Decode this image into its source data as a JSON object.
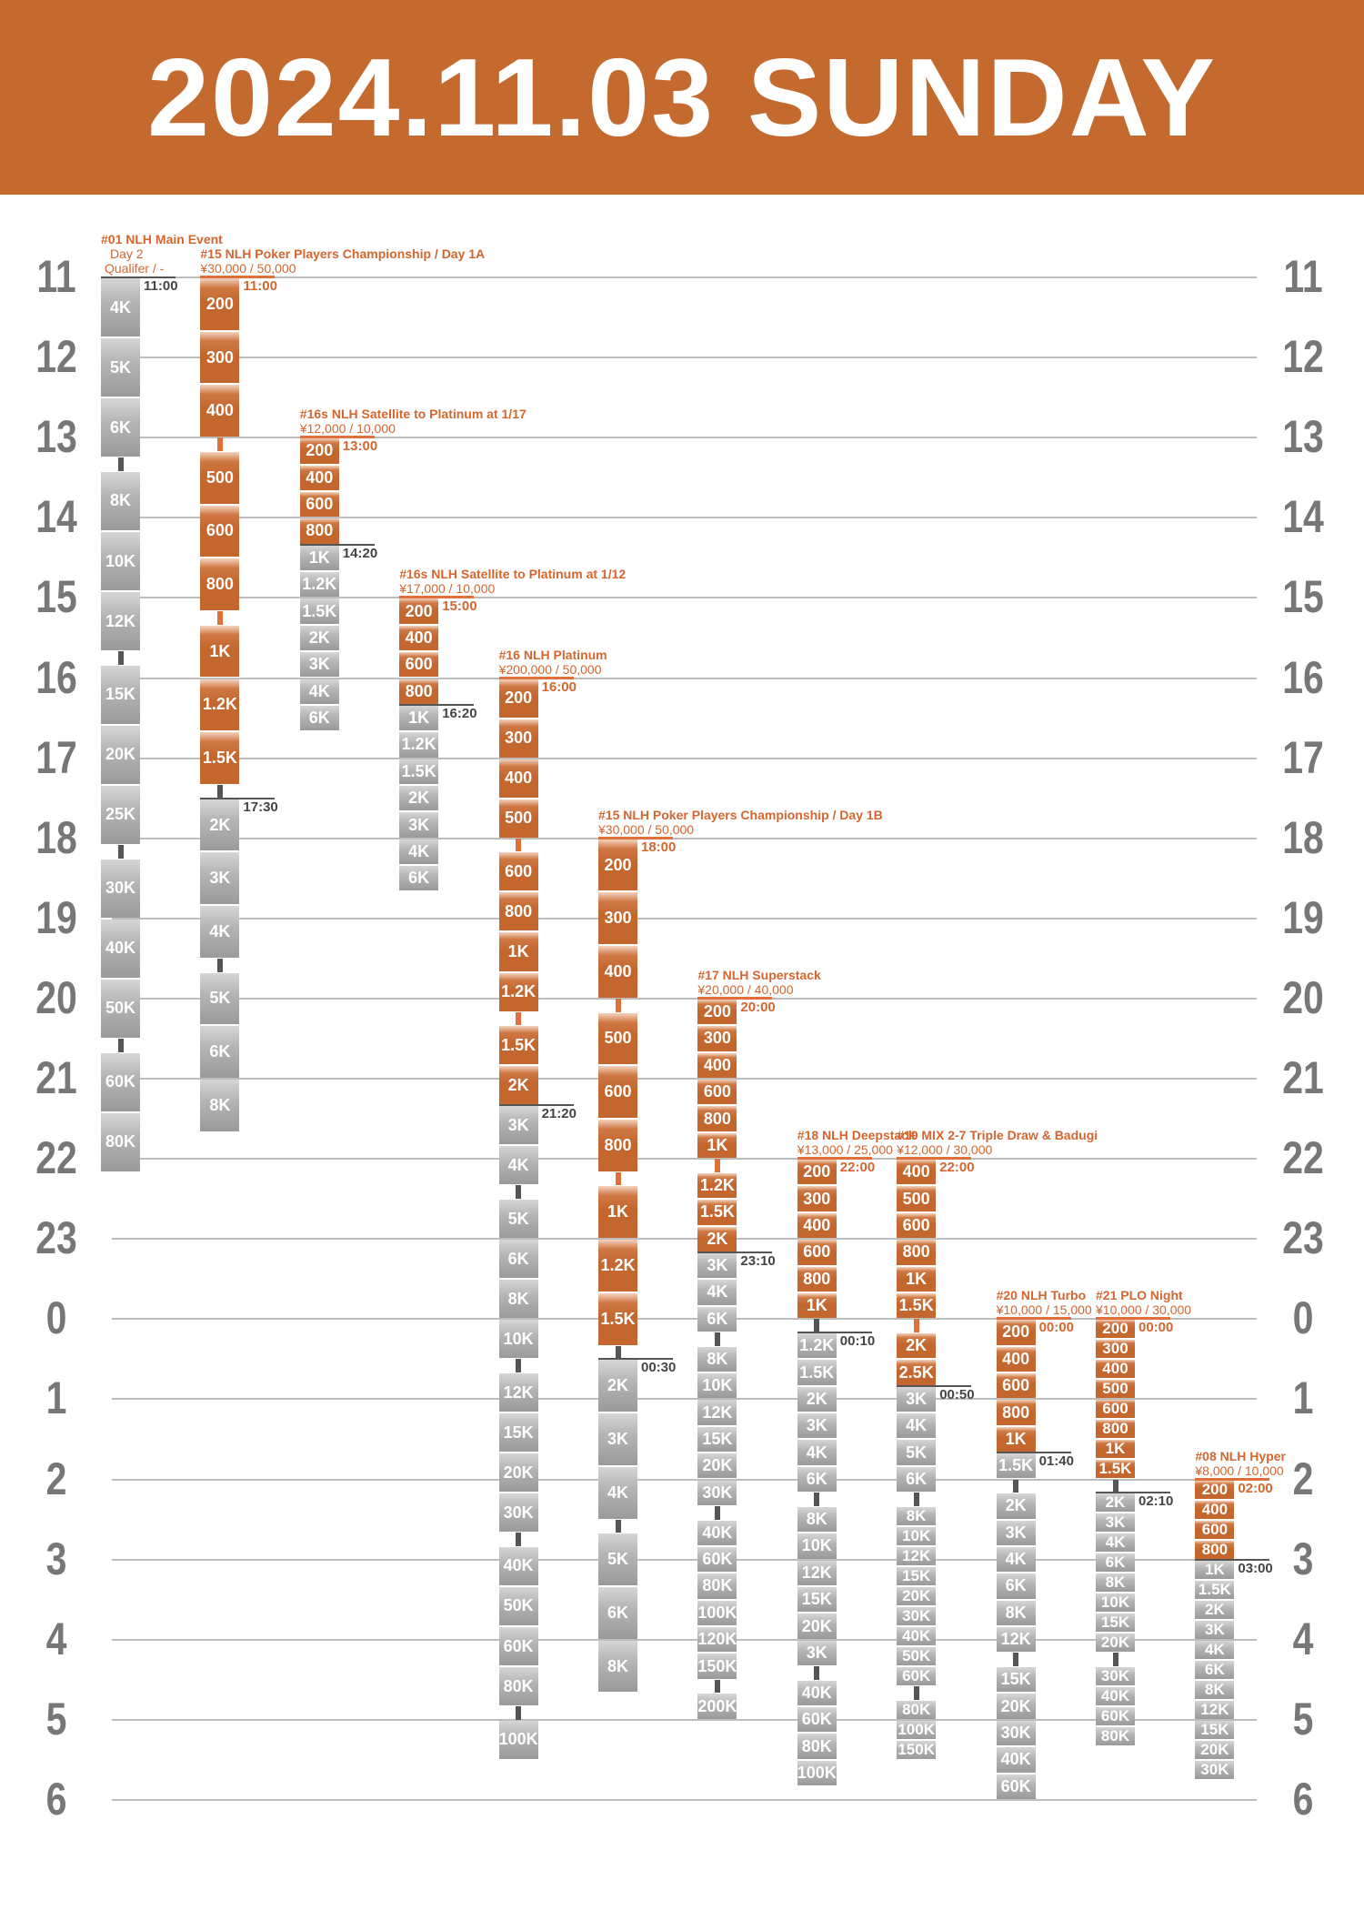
{
  "header": {
    "title": "2024.11.03 SUNDAY"
  },
  "colors": {
    "brand": "#c56a2f",
    "open_level": "#c4672f",
    "closed_level": "#a0a0a0",
    "reg_close_line": "#555555",
    "gridline": "#bdbdbd"
  },
  "hours": [
    "11",
    "12",
    "13",
    "14",
    "15",
    "16",
    "17",
    "18",
    "19",
    "20",
    "21",
    "22",
    "23",
    "0",
    "1",
    "2",
    "3",
    "4",
    "5",
    "6"
  ],
  "events": [
    {
      "title": "#01 NLH Main Event",
      "lines": [
        "Day 2",
        "Qualifer / -"
      ],
      "price": "",
      "start": "11:00",
      "reg_close": "11:00",
      "levels": [
        {
          "b": "4K",
          "m": 45
        },
        {
          "b": "5K",
          "m": 45
        },
        {
          "b": "6K",
          "m": 45
        },
        {
          "break": 10
        },
        {
          "b": "8K",
          "m": 45
        },
        {
          "b": "10K",
          "m": 45
        },
        {
          "b": "12K",
          "m": 45
        },
        {
          "break": 10
        },
        {
          "b": "15K",
          "m": 45
        },
        {
          "b": "20K",
          "m": 45
        },
        {
          "b": "25K",
          "m": 45
        },
        {
          "break": 10
        },
        {
          "b": "30K",
          "m": 45
        },
        {
          "b": "40K",
          "m": 45
        },
        {
          "b": "50K",
          "m": 45
        },
        {
          "break": 10
        },
        {
          "b": "60K",
          "m": 45
        },
        {
          "b": "80K",
          "m": 45
        }
      ]
    },
    {
      "title": "#15 NLH Poker Players Championship / Day 1A",
      "lines": [],
      "price": "¥30,000  / 50,000",
      "start": "11:00",
      "reg_close": "17:30",
      "levels": [
        {
          "b": "200",
          "m": 40
        },
        {
          "b": "300",
          "m": 40
        },
        {
          "b": "400",
          "m": 40
        },
        {
          "break": 10
        },
        {
          "b": "500",
          "m": 40
        },
        {
          "b": "600",
          "m": 40
        },
        {
          "b": "800",
          "m": 40
        },
        {
          "break": 10
        },
        {
          "b": "1K",
          "m": 40
        },
        {
          "b": "1.2K",
          "m": 40
        },
        {
          "b": "1.5K",
          "m": 40
        },
        {
          "break": 10
        },
        {
          "b": "2K",
          "m": 40
        },
        {
          "b": "3K",
          "m": 40
        },
        {
          "b": "4K",
          "m": 40
        },
        {
          "break": 10
        },
        {
          "b": "5K",
          "m": 40
        },
        {
          "b": "6K",
          "m": 40
        },
        {
          "b": "8K",
          "m": 40
        }
      ]
    },
    {
      "title": "#16s NLH Satellite to Platinum at 1/17",
      "lines": [],
      "price": "¥12,000 / 10,000",
      "start": "13:00",
      "reg_close": "14:20",
      "levels": [
        {
          "b": "200",
          "m": 20
        },
        {
          "b": "400",
          "m": 20
        },
        {
          "b": "600",
          "m": 20
        },
        {
          "b": "800",
          "m": 20
        },
        {
          "b": "1K",
          "m": 20
        },
        {
          "b": "1.2K",
          "m": 20
        },
        {
          "b": "1.5K",
          "m": 20
        },
        {
          "b": "2K",
          "m": 20
        },
        {
          "b": "3K",
          "m": 20
        },
        {
          "b": "4K",
          "m": 20
        },
        {
          "b": "6K",
          "m": 20
        }
      ]
    },
    {
      "title": "#16s NLH Satellite to Platinum at 1/12",
      "lines": [],
      "price": "¥17,000 / 10,000",
      "start": "15:00",
      "reg_close": "16:20",
      "levels": [
        {
          "b": "200",
          "m": 20
        },
        {
          "b": "400",
          "m": 20
        },
        {
          "b": "600",
          "m": 20
        },
        {
          "b": "800",
          "m": 20
        },
        {
          "b": "1K",
          "m": 20
        },
        {
          "b": "1.2K",
          "m": 20
        },
        {
          "b": "1.5K",
          "m": 20
        },
        {
          "b": "2K",
          "m": 20
        },
        {
          "b": "3K",
          "m": 20
        },
        {
          "b": "4K",
          "m": 20
        },
        {
          "b": "6K",
          "m": 20
        }
      ]
    },
    {
      "title": "#16 NLH Platinum",
      "lines": [],
      "price": "¥200,000  / 50,000",
      "start": "16:00",
      "reg_close": "21:20",
      "levels": [
        {
          "b": "200",
          "m": 30
        },
        {
          "b": "300",
          "m": 30
        },
        {
          "b": "400",
          "m": 30
        },
        {
          "b": "500",
          "m": 30
        },
        {
          "break": 10
        },
        {
          "b": "600",
          "m": 30
        },
        {
          "b": "800",
          "m": 30
        },
        {
          "b": "1K",
          "m": 30
        },
        {
          "b": "1.2K",
          "m": 30
        },
        {
          "break": 10
        },
        {
          "b": "1.5K",
          "m": 30
        },
        {
          "b": "2K",
          "m": 30
        },
        {
          "b": "3K",
          "m": 30
        },
        {
          "b": "4K",
          "m": 30
        },
        {
          "break": 10
        },
        {
          "b": "5K",
          "m": 30
        },
        {
          "b": "6K",
          "m": 30
        },
        {
          "b": "8K",
          "m": 30
        },
        {
          "b": "10K",
          "m": 30
        },
        {
          "break": 10
        },
        {
          "b": "12K",
          "m": 30
        },
        {
          "b": "15K",
          "m": 30
        },
        {
          "b": "20K",
          "m": 30
        },
        {
          "b": "30K",
          "m": 30
        },
        {
          "break": 10
        },
        {
          "b": "40K",
          "m": 30
        },
        {
          "b": "50K",
          "m": 30
        },
        {
          "b": "60K",
          "m": 30
        },
        {
          "b": "80K",
          "m": 30
        },
        {
          "break": 10
        },
        {
          "b": "100K",
          "m": 30
        }
      ]
    },
    {
      "title": "#15 NLH Poker Players Championship / Day 1B",
      "lines": [],
      "price": "¥30,000  / 50,000",
      "start": "18:00",
      "reg_close": "00:30",
      "levels": [
        {
          "b": "200",
          "m": 40
        },
        {
          "b": "300",
          "m": 40
        },
        {
          "b": "400",
          "m": 40
        },
        {
          "break": 10
        },
        {
          "b": "500",
          "m": 40
        },
        {
          "b": "600",
          "m": 40
        },
        {
          "b": "800",
          "m": 40
        },
        {
          "break": 10
        },
        {
          "b": "1K",
          "m": 40
        },
        {
          "b": "1.2K",
          "m": 40
        },
        {
          "b": "1.5K",
          "m": 40
        },
        {
          "break": 10
        },
        {
          "b": "2K",
          "m": 40
        },
        {
          "b": "3K",
          "m": 40
        },
        {
          "b": "4K",
          "m": 40
        },
        {
          "break": 10
        },
        {
          "b": "5K",
          "m": 40
        },
        {
          "b": "6K",
          "m": 40
        },
        {
          "b": "8K",
          "m": 40
        }
      ]
    },
    {
      "title": "#17 NLH Superstack",
      "lines": [],
      "price": "¥20,000 / 40,000",
      "start": "20:00",
      "reg_close": "23:10",
      "levels": [
        {
          "b": "200",
          "m": 20
        },
        {
          "b": "300",
          "m": 20
        },
        {
          "b": "400",
          "m": 20
        },
        {
          "b": "600",
          "m": 20
        },
        {
          "b": "800",
          "m": 20
        },
        {
          "b": "1K",
          "m": 20
        },
        {
          "break": 10
        },
        {
          "b": "1.2K",
          "m": 20
        },
        {
          "b": "1.5K",
          "m": 20
        },
        {
          "b": "2K",
          "m": 20
        },
        {
          "b": "3K",
          "m": 20
        },
        {
          "b": "4K",
          "m": 20
        },
        {
          "b": "6K",
          "m": 20
        },
        {
          "break": 10
        },
        {
          "b": "8K",
          "m": 20
        },
        {
          "b": "10K",
          "m": 20
        },
        {
          "b": "12K",
          "m": 20
        },
        {
          "b": "15K",
          "m": 20
        },
        {
          "b": "20K",
          "m": 20
        },
        {
          "b": "30K",
          "m": 20
        },
        {
          "break": 10
        },
        {
          "b": "40K",
          "m": 20
        },
        {
          "b": "60K",
          "m": 20
        },
        {
          "b": "80K",
          "m": 20
        },
        {
          "b": "100K",
          "m": 20
        },
        {
          "b": "120K",
          "m": 20
        },
        {
          "b": "150K",
          "m": 20
        },
        {
          "break": 10
        },
        {
          "b": "200K",
          "m": 20
        }
      ]
    },
    {
      "title": "#18 NLH Deepstack",
      "lines": [],
      "price": "¥13,000 / 25,000",
      "start": "22:00",
      "reg_close": "00:10",
      "levels": [
        {
          "b": "200",
          "m": 20
        },
        {
          "b": "300",
          "m": 20
        },
        {
          "b": "400",
          "m": 20
        },
        {
          "b": "600",
          "m": 20
        },
        {
          "b": "800",
          "m": 20
        },
        {
          "b": "1K",
          "m": 20
        },
        {
          "break": 10
        },
        {
          "b": "1.2K",
          "m": 20
        },
        {
          "b": "1.5K",
          "m": 20
        },
        {
          "b": "2K",
          "m": 20
        },
        {
          "b": "3K",
          "m": 20
        },
        {
          "b": "4K",
          "m": 20
        },
        {
          "b": "6K",
          "m": 20
        },
        {
          "break": 10
        },
        {
          "b": "8K",
          "m": 20
        },
        {
          "b": "10K",
          "m": 20
        },
        {
          "b": "12K",
          "m": 20
        },
        {
          "b": "15K",
          "m": 20
        },
        {
          "b": "20K",
          "m": 20
        },
        {
          "b": "3K",
          "m": 20
        },
        {
          "break": 10
        },
        {
          "b": "40K",
          "m": 20
        },
        {
          "b": "60K",
          "m": 20
        },
        {
          "b": "80K",
          "m": 20
        },
        {
          "b": "100K",
          "m": 20
        }
      ]
    },
    {
      "title": "#19 MIX 2-7 Triple Draw & Badugi",
      "lines": [],
      "price": "¥12,000 / 30,000",
      "start": "22:00",
      "reg_close": "00:50",
      "levels": [
        {
          "b": "400",
          "m": 20
        },
        {
          "b": "500",
          "m": 20
        },
        {
          "b": "600",
          "m": 20
        },
        {
          "b": "800",
          "m": 20
        },
        {
          "b": "1K",
          "m": 20
        },
        {
          "b": "1.5K",
          "m": 20
        },
        {
          "break": 10
        },
        {
          "b": "2K",
          "m": 20
        },
        {
          "b": "2.5K",
          "m": 20
        },
        {
          "b": "3K",
          "m": 20
        },
        {
          "b": "4K",
          "m": 20
        },
        {
          "b": "5K",
          "m": 20
        },
        {
          "b": "6K",
          "m": 20
        },
        {
          "break": 10
        },
        {
          "b": "8K",
          "m": 15
        },
        {
          "b": "10K",
          "m": 15
        },
        {
          "b": "12K",
          "m": 15
        },
        {
          "b": "15K",
          "m": 15
        },
        {
          "b": "20K",
          "m": 15
        },
        {
          "b": "30K",
          "m": 15
        },
        {
          "b": "40K",
          "m": 15
        },
        {
          "b": "50K",
          "m": 15
        },
        {
          "b": "60K",
          "m": 15
        },
        {
          "break": 10
        },
        {
          "b": "80K",
          "m": 15
        },
        {
          "b": "100K",
          "m": 15
        },
        {
          "b": "150K",
          "m": 15
        }
      ]
    },
    {
      "title": "#20 NLH Turbo",
      "lines": [],
      "price": "¥10,000 / 15,000",
      "start": "00:00",
      "reg_close": "01:40",
      "levels": [
        {
          "b": "200",
          "m": 20
        },
        {
          "b": "400",
          "m": 20
        },
        {
          "b": "600",
          "m": 20
        },
        {
          "b": "800",
          "m": 20
        },
        {
          "b": "1K",
          "m": 20
        },
        {
          "b": "1.5K",
          "m": 20
        },
        {
          "break": 10
        },
        {
          "b": "2K",
          "m": 20
        },
        {
          "b": "3K",
          "m": 20
        },
        {
          "b": "4K",
          "m": 20
        },
        {
          "b": "6K",
          "m": 20
        },
        {
          "b": "8K",
          "m": 20
        },
        {
          "b": "12K",
          "m": 20
        },
        {
          "break": 10
        },
        {
          "b": "15K",
          "m": 20
        },
        {
          "b": "20K",
          "m": 20
        },
        {
          "b": "30K",
          "m": 20
        },
        {
          "b": "40K",
          "m": 20
        },
        {
          "b": "60K",
          "m": 20
        }
      ]
    },
    {
      "title": "#21 PLO Night",
      "lines": [],
      "price": "¥10,000 / 30,000",
      "start": "00:00",
      "reg_close": "02:10",
      "levels": [
        {
          "b": "200",
          "m": 15
        },
        {
          "b": "300",
          "m": 15
        },
        {
          "b": "400",
          "m": 15
        },
        {
          "b": "500",
          "m": 15
        },
        {
          "b": "600",
          "m": 15
        },
        {
          "b": "800",
          "m": 15
        },
        {
          "b": "1K",
          "m": 15
        },
        {
          "b": "1.5K",
          "m": 15
        },
        {
          "break": 10
        },
        {
          "b": "2K",
          "m": 15
        },
        {
          "b": "3K",
          "m": 15
        },
        {
          "b": "4K",
          "m": 15
        },
        {
          "b": "6K",
          "m": 15
        },
        {
          "b": "8K",
          "m": 15
        },
        {
          "b": "10K",
          "m": 15
        },
        {
          "b": "15K",
          "m": 15
        },
        {
          "b": "20K",
          "m": 15
        },
        {
          "break": 10
        },
        {
          "b": "30K",
          "m": 15
        },
        {
          "b": "40K",
          "m": 15
        },
        {
          "b": "60K",
          "m": 15
        },
        {
          "b": "80K",
          "m": 15
        }
      ]
    },
    {
      "title": "#08 NLH Hyper",
      "lines": [],
      "price": "¥8,000 / 10,000",
      "start": "02:00",
      "reg_close": "03:00",
      "levels": [
        {
          "b": "200",
          "m": 15
        },
        {
          "b": "400",
          "m": 15
        },
        {
          "b": "600",
          "m": 15
        },
        {
          "b": "800",
          "m": 15
        },
        {
          "b": "1K",
          "m": 15
        },
        {
          "b": "1.5K",
          "m": 15
        },
        {
          "b": "2K",
          "m": 15
        },
        {
          "b": "3K",
          "m": 15
        },
        {
          "b": "4K",
          "m": 15
        },
        {
          "b": "6K",
          "m": 15
        },
        {
          "b": "8K",
          "m": 15
        },
        {
          "b": "12K",
          "m": 15
        },
        {
          "b": "15K",
          "m": 15
        },
        {
          "b": "20K",
          "m": 15
        },
        {
          "b": "30K",
          "m": 15
        }
      ]
    }
  ]
}
